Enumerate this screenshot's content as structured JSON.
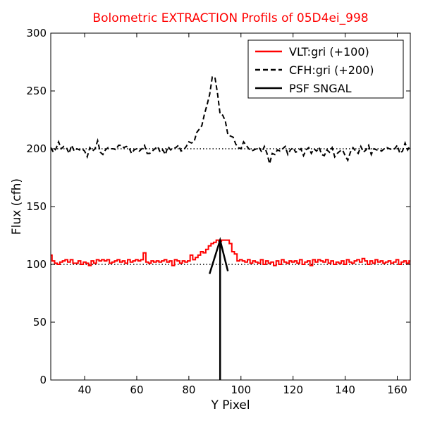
{
  "chart_data": {
    "type": "line",
    "title": "Bolometric EXTRACTION Profils of 05D4ei_998",
    "xlabel": "Y Pixel",
    "ylabel": "Flux (cfh)",
    "xlim": [
      27,
      165
    ],
    "ylim": [
      0,
      300
    ],
    "xticks": [
      40,
      60,
      80,
      100,
      120,
      140,
      160
    ],
    "yticks": [
      0,
      50,
      100,
      150,
      200,
      250,
      300
    ],
    "legend_position": "top-right",
    "reference_lines": [
      100,
      200
    ],
    "colors": {
      "vlt": "#ff0000",
      "cfh": "#000000",
      "psf": "#000000",
      "title": "#ff0000"
    },
    "series": [
      {
        "name": "VLT:gri (+100)",
        "style": "steps",
        "color": "#ff0000",
        "x": [
          27,
          28,
          29,
          30,
          31,
          32,
          33,
          34,
          35,
          36,
          37,
          38,
          39,
          40,
          41,
          42,
          43,
          44,
          45,
          46,
          47,
          48,
          49,
          50,
          51,
          52,
          53,
          54,
          55,
          56,
          57,
          58,
          59,
          60,
          61,
          62,
          63,
          64,
          65,
          66,
          67,
          68,
          69,
          70,
          71,
          72,
          73,
          74,
          75,
          76,
          77,
          78,
          79,
          80,
          81,
          82,
          83,
          84,
          85,
          86,
          87,
          88,
          89,
          90,
          91,
          92,
          93,
          94,
          95,
          96,
          97,
          98,
          99,
          100,
          101,
          102,
          103,
          104,
          105,
          106,
          107,
          108,
          109,
          110,
          111,
          112,
          113,
          114,
          115,
          116,
          117,
          118,
          119,
          120,
          121,
          122,
          123,
          124,
          125,
          126,
          127,
          128,
          129,
          130,
          131,
          132,
          133,
          134,
          135,
          136,
          137,
          138,
          139,
          140,
          141,
          142,
          143,
          144,
          145,
          146,
          147,
          148,
          149,
          150,
          151,
          152,
          153,
          154,
          155,
          156,
          157,
          158,
          159,
          160,
          161,
          162,
          163,
          164,
          165
        ],
        "values": [
          108,
          103,
          101,
          100,
          102,
          103,
          104,
          102,
          104,
          101,
          101,
          103,
          100,
          102,
          101,
          99,
          103,
          101,
          104,
          103,
          104,
          103,
          104,
          101,
          102,
          103,
          104,
          102,
          103,
          101,
          104,
          102,
          103,
          104,
          103,
          104,
          110,
          102,
          101,
          103,
          102,
          103,
          102,
          103,
          104,
          102,
          103,
          99,
          104,
          103,
          101,
          103,
          102,
          103,
          108,
          104,
          106,
          108,
          111,
          110,
          113,
          116,
          118,
          119,
          121,
          120,
          121,
          121,
          121,
          118,
          111,
          109,
          103,
          104,
          103,
          102,
          104,
          101,
          103,
          102,
          101,
          104,
          100,
          103,
          101,
          102,
          99,
          103,
          100,
          104,
          102,
          101,
          103,
          102,
          103,
          101,
          104,
          100,
          102,
          103,
          99,
          104,
          102,
          104,
          103,
          102,
          104,
          101,
          103,
          100,
          102,
          101,
          103,
          100,
          104,
          102,
          101,
          103,
          104,
          102,
          105,
          103,
          100,
          103,
          101,
          104,
          102,
          103,
          101,
          102,
          103,
          101,
          102,
          104,
          100,
          102,
          103,
          101,
          103
        ]
      },
      {
        "name": "CFH:gri (+200)",
        "style": "dashed",
        "color": "#000000",
        "x": [
          27,
          28,
          29,
          30,
          31,
          32,
          33,
          34,
          35,
          36,
          37,
          38,
          39,
          40,
          41,
          42,
          43,
          44,
          45,
          46,
          47,
          48,
          49,
          50,
          51,
          52,
          53,
          54,
          55,
          56,
          57,
          58,
          59,
          60,
          61,
          62,
          63,
          64,
          65,
          66,
          67,
          68,
          69,
          70,
          71,
          72,
          73,
          74,
          75,
          76,
          77,
          78,
          79,
          80,
          81,
          82,
          83,
          84,
          85,
          86,
          87,
          88,
          89,
          90,
          91,
          92,
          93,
          94,
          95,
          96,
          97,
          98,
          99,
          100,
          101,
          102,
          103,
          104,
          105,
          106,
          107,
          108,
          109,
          110,
          111,
          112,
          113,
          114,
          115,
          116,
          117,
          118,
          119,
          120,
          121,
          122,
          123,
          124,
          125,
          126,
          127,
          128,
          129,
          130,
          131,
          132,
          133,
          134,
          135,
          136,
          137,
          138,
          139,
          140,
          141,
          142,
          143,
          144,
          145,
          146,
          147,
          148,
          149,
          150,
          151,
          152,
          153,
          154,
          155,
          156,
          157,
          158,
          159,
          160,
          161,
          162,
          163,
          164,
          165
        ],
        "values": [
          201,
          197,
          200,
          206,
          200,
          202,
          201,
          196,
          203,
          198,
          200,
          199,
          200,
          198,
          193,
          201,
          198,
          200,
          207,
          197,
          195,
          199,
          201,
          200,
          200,
          199,
          203,
          203,
          201,
          202,
          201,
          196,
          199,
          200,
          198,
          200,
          203,
          196,
          196,
          198,
          200,
          202,
          197,
          199,
          195,
          202,
          199,
          200,
          201,
          203,
          198,
          199,
          202,
          206,
          205,
          206,
          214,
          217,
          220,
          230,
          238,
          247,
          262,
          262,
          248,
          230,
          229,
          224,
          212,
          211,
          210,
          204,
          201,
          200,
          206,
          203,
          200,
          198,
          199,
          200,
          201,
          197,
          202,
          196,
          187,
          196,
          195,
          199,
          198,
          200,
          202,
          195,
          199,
          201,
          197,
          198,
          200,
          194,
          199,
          201,
          196,
          200,
          198,
          201,
          195,
          194,
          199,
          197,
          201,
          193,
          196,
          198,
          199,
          194,
          190,
          197,
          201,
          198,
          196,
          202,
          197,
          199,
          203,
          195,
          200,
          199,
          199,
          198,
          200,
          201,
          200,
          199,
          200,
          203,
          196,
          198,
          205,
          199,
          203
        ]
      },
      {
        "name": "PSF SNGAL",
        "style": "arrow",
        "color": "#000000",
        "x": [
          92,
          92
        ],
        "values": [
          0,
          121
        ]
      }
    ]
  }
}
